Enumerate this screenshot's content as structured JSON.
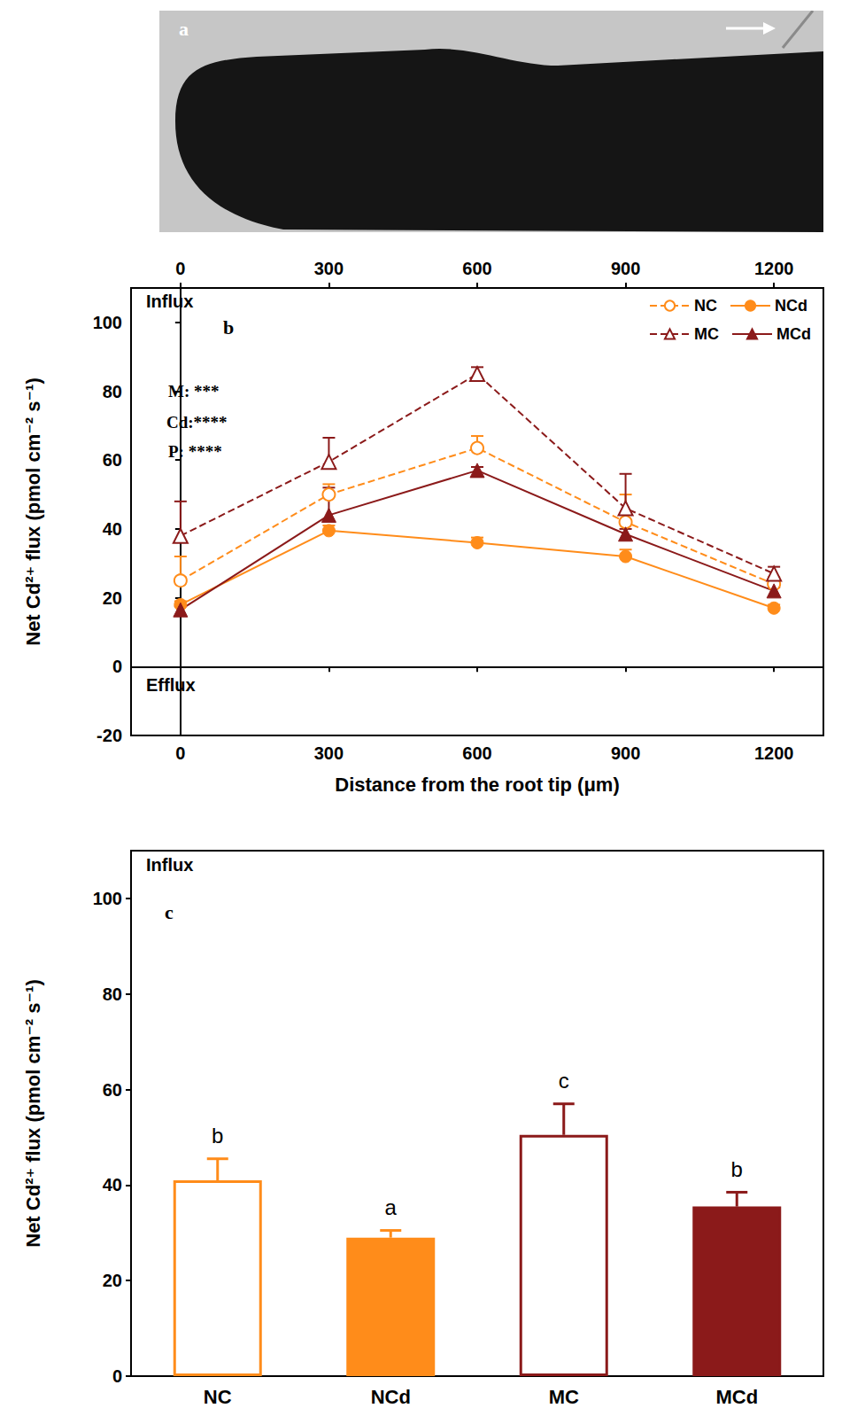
{
  "image_panel": {
    "panel_label": "a"
  },
  "chart_data": [
    {
      "type": "line",
      "panel_label": "b",
      "xlabel": "Distance from the root tip (μm)",
      "ylabel": "Net Cd²⁺ flux (pmol cm⁻² s⁻¹)",
      "x": [
        0,
        300,
        600,
        900,
        1200
      ],
      "xlim": [
        -100,
        1300
      ],
      "xticks": [
        0,
        300,
        600,
        900,
        1200
      ],
      "ylim": [
        -20,
        110
      ],
      "yticks": [
        -20,
        0,
        20,
        40,
        60,
        80,
        100
      ],
      "baseline": 0,
      "annotations": [
        "Influx",
        "Efflux",
        "M: ***",
        "Cd:****",
        "P: ****"
      ],
      "legend": "top-right",
      "grid": false,
      "series": [
        {
          "name": "NC",
          "color": "#ff8c1a",
          "marker": "circle-open",
          "line_style": "dashed",
          "values": [
            25,
            50,
            63.5,
            42,
            24
          ],
          "errors": [
            7,
            3,
            3.5,
            8,
            2
          ]
        },
        {
          "name": "NCd",
          "color": "#ff8c1a",
          "marker": "circle",
          "line_style": "solid",
          "values": [
            18,
            39.5,
            36,
            32,
            17
          ],
          "errors": [
            1,
            1.5,
            1.5,
            2,
            1
          ]
        },
        {
          "name": "MC",
          "color": "#8b1a1a",
          "marker": "triangle-open",
          "line_style": "dashed",
          "values": [
            38,
            59.5,
            85,
            46,
            27
          ],
          "errors": [
            10,
            7,
            2,
            10,
            2
          ]
        },
        {
          "name": "MCd",
          "color": "#8b1a1a",
          "marker": "triangle",
          "line_style": "solid",
          "values": [
            16.5,
            44,
            57,
            38.5,
            22
          ],
          "errors": [
            1,
            8,
            1,
            1.5,
            1
          ]
        }
      ]
    },
    {
      "type": "bar",
      "panel_label": "c",
      "ylabel": "Net Cd²⁺ flux (pmol cm⁻² s⁻¹)",
      "categories": [
        "NC",
        "NCd",
        "MC",
        "MCd"
      ],
      "values": [
        41,
        29,
        50.5,
        35.5
      ],
      "errors": [
        4.5,
        1.5,
        6.5,
        3
      ],
      "letters": [
        "b",
        "a",
        "c",
        "b"
      ],
      "colors": [
        "#ffffff",
        "#ff8c1a",
        "#ffffff",
        "#8b1a1a"
      ],
      "border_colors": [
        "#ff8c1a",
        "#ff8c1a",
        "#8b1a1a",
        "#8b1a1a"
      ],
      "ylim": [
        0,
        110
      ],
      "yticks": [
        0,
        20,
        40,
        60,
        80,
        100
      ],
      "annotations": [
        "Influx"
      ],
      "grid": false
    }
  ]
}
